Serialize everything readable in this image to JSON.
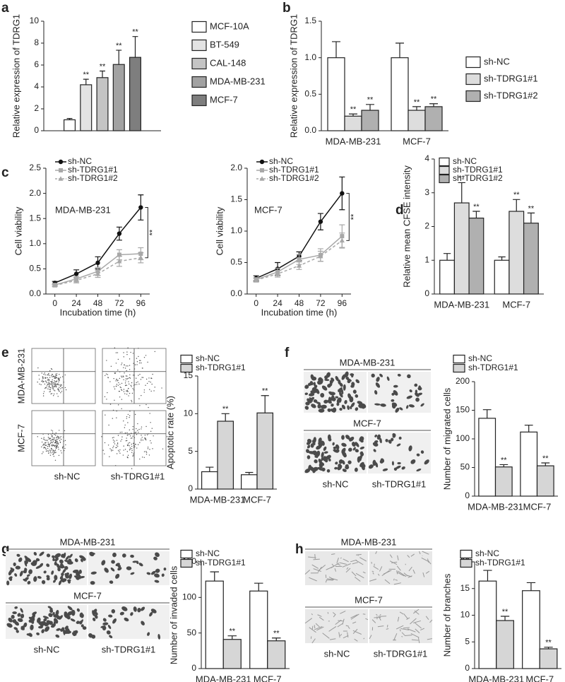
{
  "chart_data": [
    {
      "type": "bar",
      "panel": "a",
      "ylabel": "Relative expression of TDRG1",
      "categories": [
        null
      ],
      "ylim": [
        0,
        10
      ],
      "yticks": [
        0,
        2,
        4,
        6,
        8,
        10
      ],
      "series": [
        {
          "name": "MCF-10A",
          "color": "#ffffff",
          "values": [
            1.0
          ],
          "errors": [
            0.12
          ],
          "annotations": [
            null
          ]
        },
        {
          "name": "BT-549",
          "color": "#e3e3e3",
          "values": [
            4.2
          ],
          "errors": [
            0.5
          ],
          "annotations": [
            "**"
          ]
        },
        {
          "name": "CAL-148",
          "color": "#c4c4c4",
          "values": [
            4.85
          ],
          "errors": [
            0.6
          ],
          "annotations": [
            "**"
          ]
        },
        {
          "name": "MDA-MB-231",
          "color": "#a2a2a2",
          "values": [
            6.05
          ],
          "errors": [
            1.3
          ],
          "annotations": [
            "**"
          ]
        },
        {
          "name": "MCF-7",
          "color": "#7e7e7e",
          "values": [
            6.7
          ],
          "errors": [
            1.9
          ],
          "annotations": [
            "**"
          ]
        }
      ]
    },
    {
      "type": "bar",
      "panel": "b",
      "ylabel": "Relative expression of TDRG1",
      "categories": [
        "MDA-MB-231",
        "MCF-7"
      ],
      "ylim": [
        0,
        1.5
      ],
      "yticks": [
        {
          "value": 0,
          "label": "0.0"
        },
        {
          "value": 0.5,
          "label": "0.5"
        },
        {
          "value": 1,
          "label": "1.0"
        },
        {
          "value": 1.5,
          "label": "1.5"
        }
      ],
      "series": [
        {
          "name": "sh-NC",
          "color": "#ffffff",
          "values": [
            1.0,
            1.0
          ],
          "errors": [
            0.22,
            0.2
          ],
          "annotations": [
            null,
            null
          ]
        },
        {
          "name": "sh-TDRG1#1",
          "color": "#dddddd",
          "values": [
            0.2,
            0.28
          ],
          "errors": [
            0.03,
            0.05
          ],
          "annotations": [
            "**",
            "**"
          ]
        },
        {
          "name": "sh-TDRG1#2",
          "color": "#b0b0b0",
          "values": [
            0.28,
            0.33
          ],
          "errors": [
            0.08,
            0.04
          ],
          "annotations": [
            "**",
            "**"
          ]
        }
      ]
    },
    {
      "type": "line",
      "panel": "c",
      "annotation": "MDA-MB-231",
      "significance": "**",
      "xlabel": "Incubation time (h)",
      "ylabel": "Cell viability",
      "x": [
        0,
        24,
        48,
        72,
        96
      ],
      "xlim": [
        -10,
        106
      ],
      "xticks": [
        0,
        24,
        48,
        72,
        96
      ],
      "ylim": [
        0,
        2.5
      ],
      "yticks": [
        {
          "value": 0,
          "label": "0.0"
        },
        {
          "value": 0.5,
          "label": "0.5"
        },
        {
          "value": 1,
          "label": "1.0"
        },
        {
          "value": 1.5,
          "label": "1.5"
        },
        {
          "value": 2,
          "label": "2.0"
        },
        {
          "value": 2.5,
          "label": "2.5"
        }
      ],
      "series": [
        {
          "name": "sh-NC",
          "color": "#111111",
          "marker": "circle",
          "dashed": false,
          "values": [
            0.22,
            0.4,
            0.62,
            1.2,
            1.72
          ],
          "errors": [
            0.03,
            0.08,
            0.12,
            0.13,
            0.25
          ]
        },
        {
          "name": "sh-TDRG1#1",
          "color": "#a8a8a8",
          "marker": "square",
          "dashed": false,
          "values": [
            0.18,
            0.3,
            0.45,
            0.78,
            0.8
          ],
          "errors": [
            0.02,
            0.05,
            0.08,
            0.1,
            0.12
          ]
        },
        {
          "name": "sh-TDRG1#2",
          "color": "#a8a8a8",
          "marker": "triangle",
          "dashed": true,
          "values": [
            0.17,
            0.27,
            0.4,
            0.65,
            0.72
          ],
          "errors": [
            0.02,
            0.05,
            0.07,
            0.1,
            0.1
          ]
        }
      ]
    },
    {
      "type": "line",
      "annotation": "MCF-7",
      "significance": "**",
      "xlabel": "Incubation time (h)",
      "ylabel": "Cell viability",
      "x": [
        0,
        24,
        48,
        72,
        96
      ],
      "xlim": [
        -10,
        106
      ],
      "xticks": [
        0,
        24,
        48,
        72,
        96
      ],
      "ylim": [
        0,
        2.0
      ],
      "yticks": [
        {
          "value": 0,
          "label": "0.0"
        },
        {
          "value": 0.5,
          "label": "0.5"
        },
        {
          "value": 1,
          "label": "1.0"
        },
        {
          "value": 1.5,
          "label": "1.5"
        },
        {
          "value": 2,
          "label": "2.0"
        }
      ],
      "series": [
        {
          "name": "sh-NC",
          "color": "#111111",
          "marker": "circle",
          "dashed": false,
          "values": [
            0.25,
            0.4,
            0.6,
            1.15,
            1.6
          ],
          "errors": [
            0.04,
            0.1,
            0.07,
            0.13,
            0.26
          ]
        },
        {
          "name": "sh-TDRG1#1",
          "color": "#a8a8a8",
          "marker": "square",
          "dashed": false,
          "values": [
            0.23,
            0.35,
            0.55,
            0.62,
            0.92
          ],
          "errors": [
            0.03,
            0.06,
            0.08,
            0.1,
            0.18
          ]
        },
        {
          "name": "sh-TDRG1#2",
          "color": "#a8a8a8",
          "marker": "triangle",
          "dashed": true,
          "values": [
            0.22,
            0.32,
            0.45,
            0.6,
            0.85
          ],
          "errors": [
            0.03,
            0.05,
            0.06,
            0.08,
            0.12
          ]
        }
      ]
    },
    {
      "type": "bar",
      "panel": "d",
      "ylabel": "Relative mean CFSE intensity",
      "categories": [
        "MDA-MB-231",
        "MCF-7"
      ],
      "ylim": [
        0,
        4
      ],
      "yticks": [
        0,
        1,
        2,
        3,
        4
      ],
      "series": [
        {
          "name": "sh-NC",
          "color": "#ffffff",
          "values": [
            1.0,
            1.0
          ],
          "errors": [
            0.2,
            0.1
          ],
          "annotations": [
            null,
            null
          ]
        },
        {
          "name": "sh-TDRG1#1",
          "color": "#dddddd",
          "values": [
            2.7,
            2.45
          ],
          "errors": [
            0.6,
            0.35
          ],
          "annotations": [
            "**",
            "**"
          ]
        },
        {
          "name": "sh-TDRG1#2",
          "color": "#b0b0b0",
          "values": [
            2.25,
            2.1
          ],
          "errors": [
            0.2,
            0.3
          ],
          "annotations": [
            "**",
            "**"
          ]
        }
      ]
    },
    {
      "type": "bar",
      "panel": "e",
      "ylabel": "Apoptotic rate (%)",
      "categories": [
        "MDA-MB-231",
        "MCF-7"
      ],
      "images": {
        "rows": [
          "MDA-MB-231",
          "MCF-7"
        ],
        "columns": [
          "sh-NC",
          "sh-TDRG1#1"
        ]
      },
      "ylim": [
        0,
        15
      ],
      "yticks": [
        0,
        5,
        10,
        15
      ],
      "series": [
        {
          "name": "sh-NC",
          "color": "#ffffff",
          "values": [
            2.3,
            1.9
          ],
          "errors": [
            0.6,
            0.3
          ],
          "annotations": [
            null,
            null
          ]
        },
        {
          "name": "sh-TDRG1#1",
          "color": "#d6d6d6",
          "values": [
            9.0,
            10.1
          ],
          "errors": [
            1.0,
            2.3
          ],
          "annotations": [
            "**",
            "**"
          ]
        }
      ]
    },
    {
      "type": "bar",
      "panel": "f",
      "ylabel": "Number of migrated cells",
      "categories": [
        "MDA-MB-231",
        "MCF-7"
      ],
      "images": {
        "rows": [
          "MDA-MB-231",
          "MCF-7"
        ],
        "columns": [
          "sh-NC",
          "sh-TDRG1#1"
        ]
      },
      "ylim": [
        0,
        200
      ],
      "yticks": [
        0,
        50,
        100,
        150,
        200
      ],
      "series": [
        {
          "name": "sh-NC",
          "color": "#ffffff",
          "values": [
            136,
            112
          ],
          "errors": [
            15,
            12
          ],
          "annotations": [
            null,
            null
          ]
        },
        {
          "name": "sh-TDRG1#1",
          "color": "#d6d6d6",
          "values": [
            51,
            53
          ],
          "errors": [
            4,
            5
          ],
          "annotations": [
            "**",
            "**"
          ]
        }
      ]
    },
    {
      "type": "bar",
      "panel": "g",
      "ylabel": "Number of invaded cells",
      "categories": [
        "MDA-MB-231",
        "MCF-7"
      ],
      "images": {
        "rows": [
          "MDA-MB-231",
          "MCF-7"
        ],
        "columns": [
          "sh-NC",
          "sh-TDRG1#1"
        ]
      },
      "ylim": [
        0,
        150
      ],
      "yticks": [
        0,
        50,
        100,
        150
      ],
      "series": [
        {
          "name": "sh-NC",
          "color": "#ffffff",
          "values": [
            123,
            109
          ],
          "errors": [
            13,
            11
          ],
          "annotations": [
            null,
            null
          ]
        },
        {
          "name": "sh-TDRG1#1",
          "color": "#d6d6d6",
          "values": [
            41,
            39
          ],
          "errors": [
            5,
            4
          ],
          "annotations": [
            "**",
            "**"
          ]
        }
      ]
    },
    {
      "type": "bar",
      "panel": "h",
      "ylabel": "Number of branches",
      "categories": [
        "MDA-MB-231",
        "MCF-7"
      ],
      "images": {
        "rows": [
          "MDA-MB-231",
          "MCF-7"
        ],
        "columns": [
          "sh-NC",
          "sh-TDRG1#1"
        ]
      },
      "ylim": [
        0,
        20
      ],
      "yticks": [
        0,
        5,
        10,
        15,
        20
      ],
      "series": [
        {
          "name": "sh-NC",
          "color": "#ffffff",
          "values": [
            16.4,
            14.6
          ],
          "errors": [
            2.0,
            1.5
          ],
          "annotations": [
            null,
            null
          ]
        },
        {
          "name": "sh-TDRG1#1",
          "color": "#d6d6d6",
          "values": [
            9.0,
            3.7
          ],
          "errors": [
            0.8,
            0.3
          ],
          "annotations": [
            "**",
            "**"
          ]
        }
      ]
    }
  ]
}
